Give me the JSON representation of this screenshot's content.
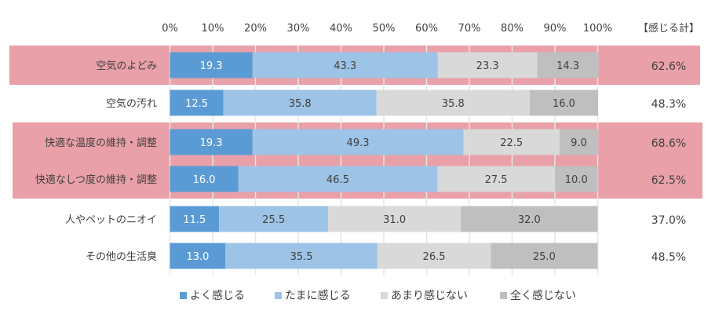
{
  "chart_data": {
    "type": "bar",
    "orientation": "horizontal",
    "stacked": true,
    "percent_stacked": true,
    "title": "",
    "xlabel": "",
    "ylabel": "",
    "xlim": [
      0,
      100
    ],
    "x_ticks": [
      "0%",
      "10%",
      "20%",
      "30%",
      "40%",
      "50%",
      "60%",
      "70%",
      "80%",
      "90%",
      "100%"
    ],
    "grid": true,
    "categories": [
      "空気のよどみ",
      "空気の汚れ",
      "快適な温度の維持・調整",
      "快適なしつ度の維持・調整",
      "人やペットのニオイ",
      "その他の生活臭"
    ],
    "series": [
      {
        "name": "よく感じる",
        "color": "#5B9BD5",
        "label_color": "#ffffff",
        "values": [
          19.3,
          12.5,
          19.3,
          16.0,
          11.5,
          13.0
        ]
      },
      {
        "name": "たまに感じる",
        "color": "#9DC3E6",
        "label_color": "#404040",
        "values": [
          43.3,
          35.8,
          49.3,
          46.5,
          25.5,
          35.5
        ]
      },
      {
        "name": "あまり感じない",
        "color": "#D9D9D9",
        "label_color": "#404040",
        "values": [
          23.3,
          35.8,
          22.5,
          27.5,
          31.0,
          26.5
        ]
      },
      {
        "name": "全く感じない",
        "color": "#BFBFBF",
        "label_color": "#404040",
        "values": [
          14.3,
          16.0,
          9.0,
          10.0,
          32.0,
          25.0
        ]
      }
    ],
    "totals_header": "【感じる計】",
    "totals": [
      "62.6%",
      "48.3%",
      "68.6%",
      "62.5%",
      "37.0%",
      "48.5%"
    ],
    "highlighted_rows": [
      0,
      2,
      3
    ],
    "highlight_color": "#E9A0A8",
    "legend_position": "bottom"
  }
}
